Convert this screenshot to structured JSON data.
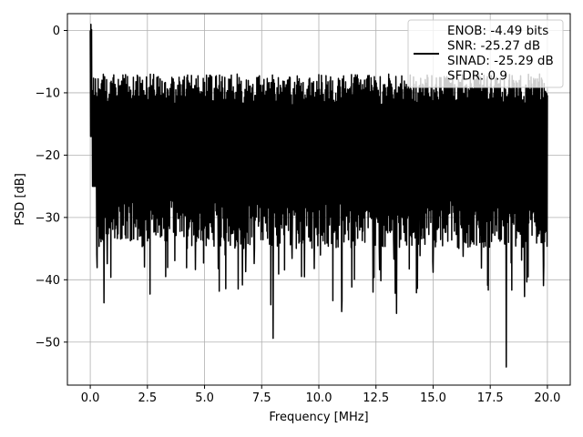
{
  "chart_data": {
    "type": "line",
    "title": "",
    "xlabel": "Frequency [MHz]",
    "ylabel": "PSD [dB]",
    "xlim": [
      -1.0,
      21.0
    ],
    "ylim": [
      -56.9,
      2.7
    ],
    "xticks": [
      0.0,
      2.5,
      5.0,
      7.5,
      10.0,
      12.5,
      15.0,
      17.5,
      20.0
    ],
    "xtick_labels": [
      "0.0",
      "2.5",
      "5.0",
      "7.5",
      "10.0",
      "12.5",
      "15.0",
      "17.5",
      "20.0"
    ],
    "yticks": [
      0,
      -10,
      -20,
      -30,
      -40,
      -50
    ],
    "ytick_labels": [
      "0",
      "−10",
      "−20",
      "−30",
      "−40",
      "−50"
    ],
    "grid": true,
    "legend_position": "top-right",
    "legend_entries": [
      "ENOB: -4.49 bits",
      "SNR: -25.27 dB",
      "SINAD: -25.29 dB",
      "SFDR: 0.9"
    ],
    "series": [
      {
        "color": "#000000",
        "x_range": [
          0.0,
          20.0
        ],
        "peak": [
          0.0,
          0.0
        ],
        "band_upper_approx": -10,
        "band_lower_approx": -25,
        "notable_dips": [
          [
            0.6,
            -43.7
          ],
          [
            0.9,
            -39.6
          ],
          [
            3.3,
            -39.5
          ],
          [
            5.6,
            -38.2
          ],
          [
            6.8,
            -38.7
          ],
          [
            7.9,
            -44.0
          ],
          [
            8.0,
            -49.4
          ],
          [
            9.8,
            -38.2
          ],
          [
            11.0,
            -45.1
          ],
          [
            13.4,
            -45.4
          ],
          [
            15.0,
            -38.8
          ],
          [
            18.2,
            -54.0
          ],
          [
            19.0,
            -42.7
          ]
        ]
      }
    ]
  }
}
